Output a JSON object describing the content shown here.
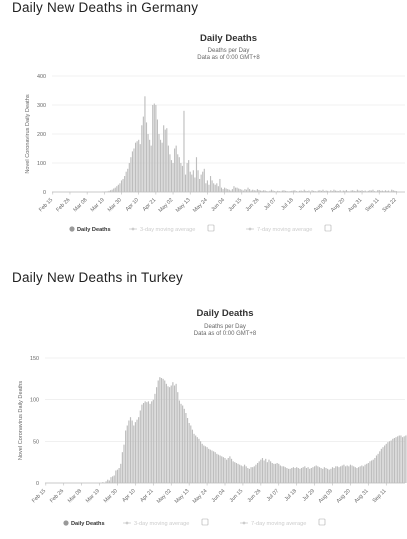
{
  "page": {
    "germany_heading": "Daily New Deaths in Germany",
    "turkey_heading": "Daily New Deaths in Turkey"
  },
  "colors": {
    "bar": "#bdbdbd",
    "bar_stroke": "#9e9e9e",
    "grid": "#e6e6e6",
    "axis": "#bbbbbb",
    "legend_dot": "#999999",
    "legend_faint": "#cccccc"
  },
  "chart_data": [
    {
      "id": "germany",
      "type": "bar",
      "title": "Daily Deaths",
      "subtitle": [
        "Deaths per Day",
        "Data as of 0:00 GMT+8"
      ],
      "ylabel": "Novel Coronavirus Daily Deaths",
      "ylim": [
        0,
        400
      ],
      "yticks": [
        0,
        100,
        200,
        300,
        400
      ],
      "grid": true,
      "x_start": "2020-02-15",
      "x_end": "2020-09-27",
      "x_ticks": [
        "Feb 15",
        "Feb 26",
        "Mar 08",
        "Mar 19",
        "Mar 30",
        "Apr 10",
        "Apr 21",
        "May 02",
        "May 13",
        "May 24",
        "Jun 04",
        "Jun 15",
        "Jun 26",
        "Jul 07",
        "Jul 18",
        "Jul 29",
        "Aug 09",
        "Aug 20",
        "Aug 31",
        "Sep 11",
        "Sep 22"
      ],
      "series": [
        {
          "name": "Daily Deaths",
          "values": [
            0,
            0,
            0,
            0,
            0,
            0,
            0,
            0,
            0,
            0,
            0,
            0,
            0,
            0,
            0,
            0,
            0,
            0,
            0,
            0,
            0,
            0,
            0,
            0,
            0,
            0,
            0,
            0,
            0,
            0,
            0,
            0,
            1,
            1,
            2,
            2,
            4,
            6,
            8,
            12,
            15,
            20,
            25,
            30,
            40,
            45,
            55,
            70,
            80,
            100,
            120,
            140,
            150,
            170,
            175,
            180,
            165,
            230,
            260,
            330,
            240,
            200,
            180,
            160,
            300,
            305,
            300,
            250,
            200,
            180,
            170,
            230,
            215,
            220,
            160,
            130,
            110,
            100,
            150,
            160,
            130,
            120,
            100,
            90,
            280,
            60,
            100,
            110,
            70,
            60,
            75,
            50,
            120,
            75,
            45,
            60,
            70,
            80,
            30,
            40,
            25,
            55,
            40,
            30,
            25,
            30,
            20,
            45,
            15,
            10,
            15,
            12,
            10,
            8,
            5,
            10,
            20,
            15,
            15,
            12,
            10,
            8,
            5,
            10,
            8,
            15,
            10,
            5,
            8,
            6,
            5,
            10,
            7,
            5,
            4,
            6,
            5,
            3,
            2,
            4,
            8,
            5,
            3,
            2,
            4,
            3,
            2,
            5,
            6,
            4,
            3,
            2,
            3,
            4,
            5,
            6,
            3,
            2,
            4,
            5,
            3,
            8,
            4,
            3,
            5,
            2,
            6,
            4,
            3,
            2,
            5,
            6,
            4,
            8,
            3,
            5,
            4,
            2,
            6,
            3,
            8,
            5,
            4,
            3,
            6,
            2,
            5,
            4,
            7,
            3,
            2,
            5,
            6,
            4,
            3,
            8,
            5,
            4,
            6,
            3,
            5,
            2,
            4,
            6,
            5,
            8,
            3,
            2,
            6,
            7,
            4,
            5,
            3,
            6,
            4,
            5,
            2,
            8,
            6,
            4,
            3
          ]
        }
      ],
      "legend": {
        "placement": "bottom",
        "items": [
          {
            "label": "Daily Deaths",
            "active": true
          },
          {
            "label": "3-day moving average",
            "active": false
          },
          {
            "label": "7-day moving average",
            "active": false
          }
        ]
      }
    },
    {
      "id": "turkey",
      "type": "bar",
      "title": "Daily Deaths",
      "subtitle": [
        "Deaths per Day",
        "Data as of 0:00 GMT+8"
      ],
      "ylabel": "Novel Coronavirus Daily Deaths",
      "ylim": [
        0,
        150
      ],
      "yticks": [
        0,
        50,
        100,
        150
      ],
      "grid": true,
      "x_start": "2020-02-15",
      "x_end": "2020-09-22",
      "x_ticks": [
        "Feb 15",
        "Feb 26",
        "Mar 08",
        "Mar 19",
        "Mar 30",
        "Apr 10",
        "Apr 21",
        "May 02",
        "May 13",
        "May 24",
        "Jun 04",
        "Jun 15",
        "Jun 26",
        "Jul 07",
        "Jul 18",
        "Jul 29",
        "Aug 09",
        "Aug 20",
        "Aug 31",
        "Sep 11"
      ],
      "series": [
        {
          "name": "Daily Deaths",
          "values": [
            0,
            0,
            0,
            0,
            0,
            0,
            0,
            0,
            0,
            0,
            0,
            0,
            0,
            0,
            0,
            0,
            0,
            0,
            0,
            0,
            0,
            0,
            0,
            0,
            0,
            0,
            0,
            0,
            0,
            0,
            0,
            0,
            0,
            0,
            0,
            1,
            0,
            2,
            4,
            3,
            7,
            8,
            9,
            15,
            16,
            18,
            23,
            37,
            46,
            63,
            69,
            75,
            79,
            75,
            69,
            73,
            76,
            79,
            87,
            94,
            96,
            98,
            97,
            98,
            95,
            98,
            100,
            107,
            115,
            123,
            127,
            126,
            125,
            123,
            119,
            116,
            115,
            117,
            121,
            117,
            119,
            109,
            99,
            95,
            93,
            89,
            84,
            78,
            72,
            69,
            64,
            59,
            57,
            55,
            53,
            50,
            47,
            45,
            44,
            43,
            41,
            40,
            39,
            38,
            37,
            35,
            34,
            33,
            32,
            31,
            30,
            28,
            30,
            32,
            29,
            26,
            25,
            24,
            23,
            22,
            21,
            20,
            22,
            20,
            18,
            17,
            19,
            19,
            20,
            22,
            24,
            26,
            28,
            30,
            27,
            29,
            25,
            28,
            26,
            24,
            23,
            23,
            24,
            23,
            21,
            20,
            20,
            19,
            18,
            17,
            17,
            18,
            19,
            18,
            19,
            18,
            17,
            18,
            19,
            20,
            18,
            19,
            17,
            18,
            19,
            20,
            21,
            20,
            19,
            18,
            17,
            19,
            18,
            17,
            16,
            17,
            19,
            18,
            20,
            20,
            19,
            20,
            21,
            22,
            20,
            21,
            20,
            22,
            21,
            20,
            19,
            18,
            19,
            20,
            21,
            20,
            22,
            23,
            24,
            26,
            27,
            28,
            30,
            33,
            35,
            38,
            41,
            43,
            45,
            47,
            49,
            50,
            51,
            53,
            54,
            55,
            56,
            57,
            57,
            55,
            56,
            57,
            58,
            59,
            57,
            55,
            56
          ]
        }
      ],
      "legend": {
        "placement": "bottom",
        "items": [
          {
            "label": "Daily Deaths",
            "active": true
          },
          {
            "label": "3-day moving average",
            "active": false
          },
          {
            "label": "7-day moving average",
            "active": false
          }
        ]
      }
    }
  ]
}
